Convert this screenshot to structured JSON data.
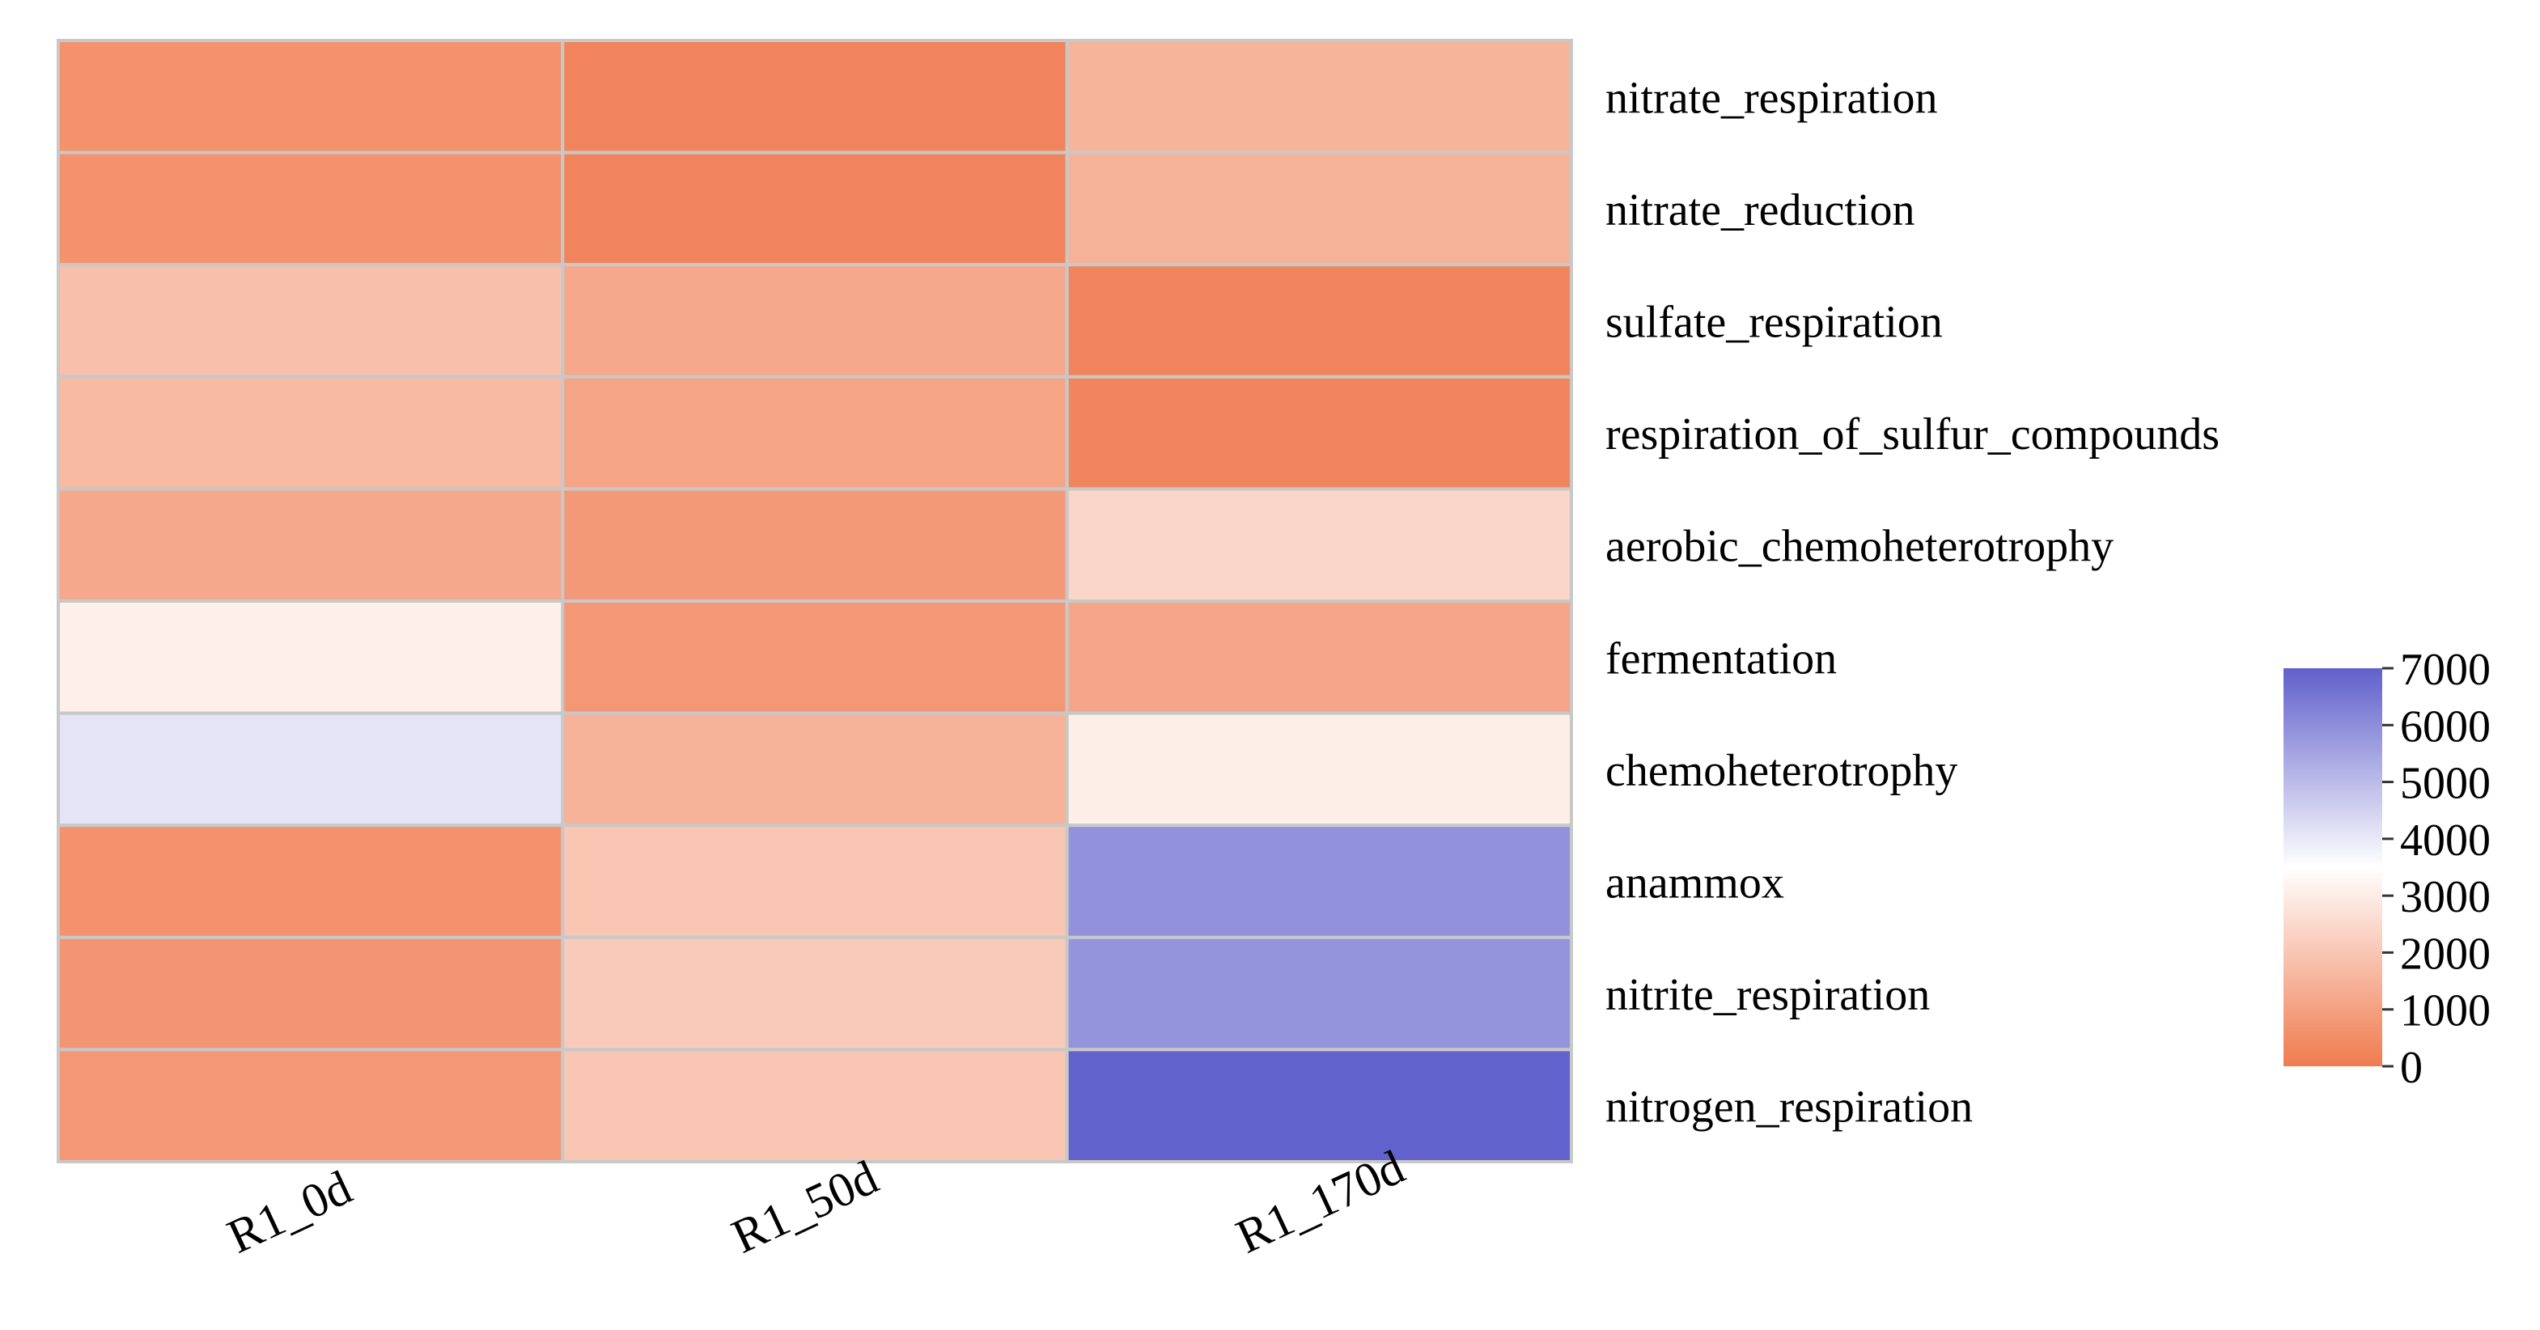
{
  "chart_data": {
    "type": "heatmap",
    "title": "",
    "xlabel": "",
    "ylabel": "",
    "columns": [
      "R1_0d",
      "R1_50d",
      "R1_170d"
    ],
    "rows": [
      "nitrate_respiration",
      "nitrate_reduction",
      "sulfate_respiration",
      "respiration_of_sulfur_compounds",
      "aerobic_chemoheterotrophy",
      "fermentation",
      "chemoheterotrophy",
      "anammox",
      "nitrite_respiration",
      "nitrogen_respiration"
    ],
    "values": [
      [
        600,
        250,
        1500
      ],
      [
        600,
        250,
        1450
      ],
      [
        1800,
        1200,
        250
      ],
      [
        1700,
        1100,
        300
      ],
      [
        1200,
        800,
        2400
      ],
      [
        3100,
        750,
        1150
      ],
      [
        4100,
        1450,
        3050
      ],
      [
        600,
        2000,
        5900
      ],
      [
        700,
        2100,
        5850
      ],
      [
        750,
        2000,
        6950
      ]
    ],
    "colorbar": {
      "min": 0,
      "max": 7000,
      "ticks": [
        0,
        1000,
        2000,
        3000,
        4000,
        5000,
        6000,
        7000
      ],
      "tick_labels": [
        "0",
        "1000",
        "2000",
        "3000",
        "4000",
        "5000",
        "6000",
        "7000"
      ],
      "colors": {
        "low": "#f07b4f",
        "mid": "#ffffff",
        "high": "#6060cc"
      },
      "mid_value": 3500
    },
    "cell_border_color": "#c8c8c8"
  }
}
